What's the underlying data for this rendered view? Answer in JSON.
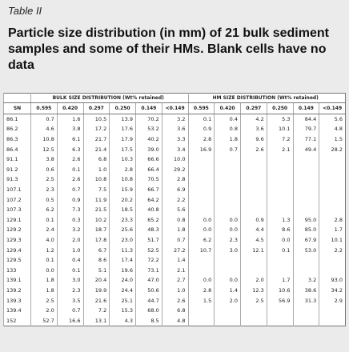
{
  "header": {
    "label": "Table II",
    "title": "Particle size distribution (in mm) of 21 bulk sediment samples and some of their HMs. Blank cells have no data"
  },
  "table": {
    "groups": [
      "BULK SIZE DISTRIBUTION (Wt% retained)",
      "HM SIZE DISTRIBUTION (Wt% retained)"
    ],
    "columns": [
      "SN",
      "0.595",
      "0.420",
      "0.297",
      "0.250",
      "0.149",
      "<0.149",
      "0.595",
      "0.420",
      "0.297",
      "0.250",
      "0.149",
      "<0.149"
    ],
    "rows": [
      {
        "sn": "86.1",
        "bulk": [
          "0.7",
          "1.6",
          "10.5",
          "13.9",
          "70.2",
          "3.2"
        ],
        "hm": [
          "0.1",
          "0.4",
          "4.2",
          "5.3",
          "84.4",
          "5.6"
        ]
      },
      {
        "sn": "86.2",
        "bulk": [
          "4.6",
          "3.8",
          "17.2",
          "17.6",
          "53.2",
          "3.6"
        ],
        "hm": [
          "0.9",
          "0.8",
          "3.6",
          "10.1",
          "79.7",
          "4.8"
        ]
      },
      {
        "sn": "86.3",
        "bulk": [
          "10.8",
          "6.1",
          "21.7",
          "17.9",
          "40.2",
          "3.3"
        ],
        "hm": [
          "2.8",
          "1.8",
          "9.6",
          "7.2",
          "77.1",
          "1.5"
        ]
      },
      {
        "sn": "86.4",
        "bulk": [
          "12.5",
          "6.3",
          "21.4",
          "17.5",
          "39.0",
          "3.4"
        ],
        "hm": [
          "16.9",
          "0.7",
          "2.6",
          "2.1",
          "49.4",
          "28.2"
        ]
      },
      {
        "sn": "91.1",
        "bulk": [
          "3.8",
          "2.6",
          "6.8",
          "10.3",
          "66.6",
          "10.0"
        ]
      },
      {
        "sn": "91.2",
        "bulk": [
          "0.6",
          "0.1",
          "1.0",
          "2.8",
          "66.4",
          "29.2"
        ]
      },
      {
        "sn": "91.3",
        "bulk": [
          "2.5",
          "2.6",
          "10.8",
          "10.8",
          "70.5",
          "2.8"
        ]
      },
      {
        "sn": "107.1",
        "bulk": [
          "2.3",
          "0.7",
          "7.5",
          "15.9",
          "66.7",
          "6.9"
        ]
      },
      {
        "sn": "107.2",
        "bulk": [
          "0.5",
          "0.9",
          "11.9",
          "20.2",
          "64.2",
          "2.2"
        ]
      },
      {
        "sn": "107.3",
        "bulk": [
          "6.2",
          "7.3",
          "21.5",
          "18.5",
          "40.8",
          "5.6"
        ]
      },
      {
        "sn": "129.1",
        "bulk": [
          "0.1",
          "0.3",
          "10.2",
          "23.3",
          "65.2",
          "0.8"
        ],
        "hm": [
          "0.0",
          "0.0",
          "0.9",
          "1.3",
          "95.0",
          "2.8"
        ]
      },
      {
        "sn": "129.2",
        "bulk": [
          "2.4",
          "3.2",
          "18.7",
          "25.6",
          "48.3",
          "1.8"
        ],
        "hm": [
          "0.0",
          "0.0",
          "4.4",
          "8.6",
          "85.0",
          "1.7"
        ]
      },
      {
        "sn": "129.3",
        "bulk": [
          "4.0",
          "2.0",
          "17.8",
          "23.0",
          "51.7",
          "0.7"
        ],
        "hm": [
          "6.2",
          "2.3",
          "4.5",
          "0.0",
          "67.9",
          "10.1"
        ]
      },
      {
        "sn": "129.4",
        "bulk": [
          "1.2",
          "1.0",
          "6.7",
          "11.3",
          "52.5",
          "27.2"
        ],
        "hm": [
          "10.7",
          "3.0",
          "12.1",
          "0.1",
          "53.0",
          "2.2"
        ]
      },
      {
        "sn": "129.5",
        "bulk": [
          "0.1",
          "0.4",
          "8.6",
          "17.4",
          "72.2",
          "1.4"
        ]
      },
      {
        "sn": "133",
        "bulk": [
          "0.0",
          "0.1",
          "5.1",
          "19.6",
          "73.1",
          "2.1"
        ]
      },
      {
        "sn": "139.1",
        "bulk": [
          "1.8",
          "3.0",
          "20.4",
          "24.0",
          "47.0",
          "2.7"
        ],
        "hm": [
          "0.0",
          "0.0",
          "2.0",
          "1.7",
          "3.2",
          "93.0"
        ]
      },
      {
        "sn": "139.2",
        "bulk": [
          "1.8",
          "2.3",
          "19.9",
          "24.4",
          "50.6",
          "1.0"
        ],
        "hm": [
          "2.8",
          "1.4",
          "12.3",
          "10.6",
          "38.6",
          "34.2"
        ]
      },
      {
        "sn": "139.3",
        "bulk": [
          "2.5",
          "3.5",
          "21.6",
          "25.1",
          "44.7",
          "2.6"
        ],
        "hm": [
          "1.5",
          "2.0",
          "2.5",
          "56.9",
          "31.3",
          "2.9"
        ]
      },
      {
        "sn": "139.4",
        "bulk": [
          "2.0",
          "0.7",
          "7.2",
          "15.3",
          "68.0",
          "6.8"
        ]
      },
      {
        "sn": "152",
        "bulk": [
          "52.7",
          "16.6",
          "13.1",
          "4.3",
          "8.5",
          "4.8"
        ]
      }
    ]
  }
}
